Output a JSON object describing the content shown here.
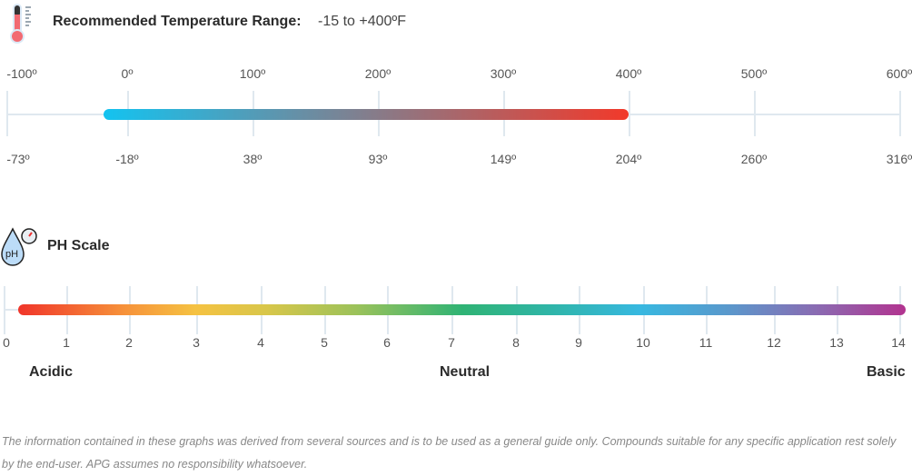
{
  "temperature": {
    "title": "Recommended Temperature Range:",
    "range_text": "-15 to +400ºF",
    "fahrenheit_ticks": [
      "-100º",
      "0º",
      "100º",
      "200º",
      "300º",
      "400º",
      "500º",
      "600º"
    ],
    "celsius_ticks": [
      "-73º",
      "-18º",
      "38º",
      "93º",
      "149º",
      "204º",
      "260º",
      "316º"
    ],
    "colors": {
      "start": "#13c3f0",
      "end": "#f2392a"
    }
  },
  "ph": {
    "title": "PH Scale",
    "ticks": [
      "0",
      "1",
      "2",
      "3",
      "4",
      "5",
      "6",
      "7",
      "8",
      "9",
      "10",
      "11",
      "12",
      "13",
      "14"
    ],
    "acidic": "Acidic",
    "neutral": "Neutral",
    "basic": "Basic"
  },
  "chart_data": [
    {
      "type": "range",
      "title": "Recommended Temperature Range",
      "unit": "ºF",
      "axis": [
        -100,
        600
      ],
      "range": [
        -15,
        400
      ],
      "ticks_f": [
        -100,
        0,
        100,
        200,
        300,
        400,
        500,
        600
      ],
      "ticks_c": [
        -73,
        -18,
        38,
        93,
        149,
        204,
        260,
        316
      ]
    },
    {
      "type": "scale",
      "title": "PH Scale",
      "axis": [
        0,
        14
      ],
      "range": [
        0,
        14
      ],
      "labels": {
        "0": "Acidic",
        "7": "Neutral",
        "14": "Basic"
      }
    }
  ],
  "disclaimer": "The information contained in these graphs was derived from several sources and is to be used as a general guide only. Compounds suitable for any specific application rest solely by the end-user. APG assumes no responsibility whatsoever."
}
